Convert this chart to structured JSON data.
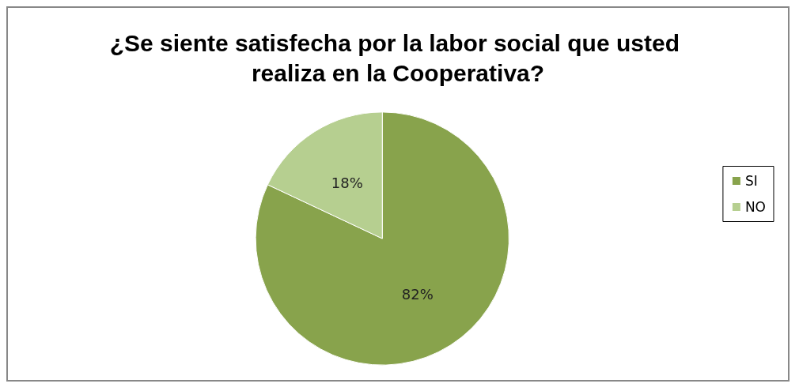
{
  "chart_data": {
    "type": "pie",
    "title": "¿Se siente satisfecha por la labor social que usted realiza en la Cooperativa?",
    "categories": [
      "SI",
      "NO"
    ],
    "values": [
      82,
      18
    ],
    "colors": [
      "#88a34c",
      "#b6cf90"
    ],
    "value_labels": [
      "82%",
      "18%"
    ],
    "legend": "right"
  }
}
